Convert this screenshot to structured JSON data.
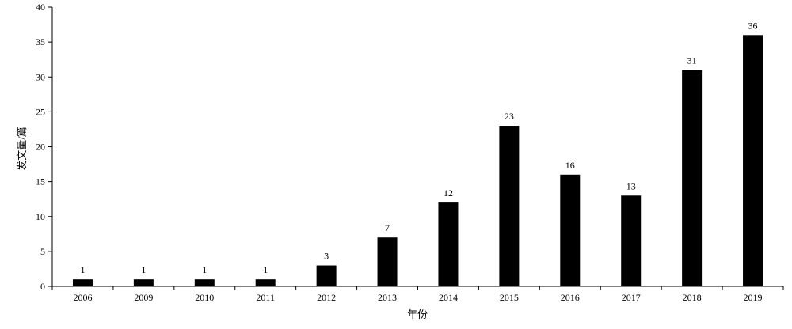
{
  "chart_data": {
    "type": "bar",
    "categories": [
      "2006",
      "2009",
      "2010",
      "2011",
      "2012",
      "2013",
      "2014",
      "2015",
      "2016",
      "2017",
      "2018",
      "2019"
    ],
    "values": [
      1,
      1,
      1,
      1,
      3,
      7,
      12,
      23,
      16,
      13,
      31,
      36
    ],
    "data_labels": [
      "1",
      "1",
      "1",
      "1",
      "3",
      "7",
      "12",
      "23",
      "16",
      "13",
      "31",
      "36"
    ],
    "xlabel": "年份",
    "ylabel": "发文量/篇",
    "ylim": [
      0,
      40
    ],
    "y_ticks": [
      "0",
      "5",
      "10",
      "15",
      "20",
      "25",
      "30",
      "35",
      "40"
    ],
    "grid": false,
    "legend": "none",
    "bar_color": "#000000"
  }
}
